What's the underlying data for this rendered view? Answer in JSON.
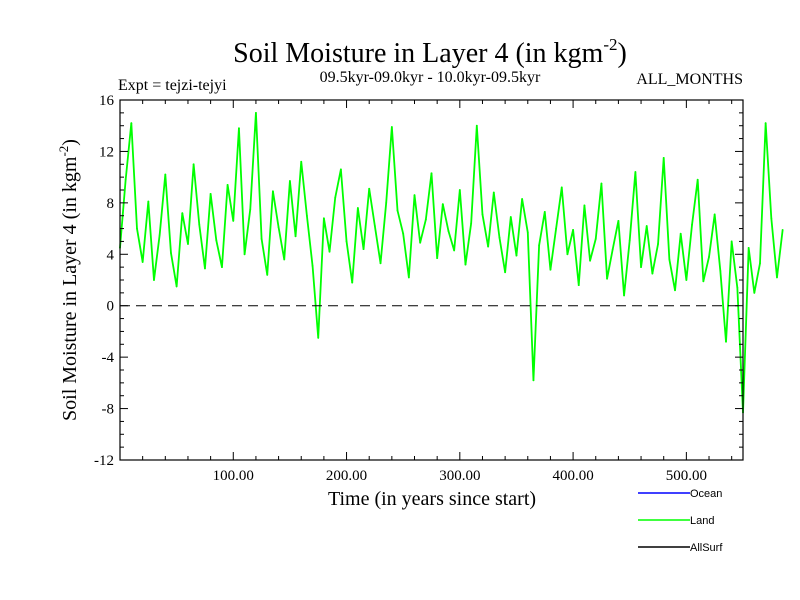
{
  "chart_data": {
    "type": "line",
    "title": "Soil Moisture in Layer 4 (in kgm",
    "title_sup": "-2",
    "title_close": ")",
    "expt": "Expt = tejzi-tejyi",
    "period": "09.5kyr-09.0kyr - 10.0kyr-09.5kyr",
    "months": "ALL_MONTHS",
    "xlabel": "Time (in years since start)",
    "ylabel": "Soil Moisture in Layer 4 (in kgm",
    "ylabel_sup": "-2",
    "ylabel_close": ")",
    "xlim": [
      0,
      550
    ],
    "ylim": [
      -12,
      16
    ],
    "x_ticks": [
      100,
      200,
      300,
      400,
      500
    ],
    "x_tick_labels": [
      "100.00",
      "200.00",
      "300.00",
      "400.00",
      "500.00"
    ],
    "y_ticks": [
      -12,
      -8,
      -4,
      0,
      4,
      8,
      12,
      16
    ],
    "y_tick_labels": [
      "-12",
      "-8",
      "-4",
      "0",
      "4",
      "8",
      "12",
      "16"
    ],
    "zero_line": 0,
    "series": [
      {
        "name": "Ocean",
        "color": "#0000ff",
        "values": []
      },
      {
        "name": "Land",
        "color": "#00ff00",
        "x_step": 5,
        "values": [
          4.5,
          9.8,
          14.2,
          6.0,
          3.4,
          8.1,
          2.0,
          5.5,
          10.2,
          4.1,
          1.5,
          7.2,
          4.8,
          11.0,
          6.3,
          2.9,
          8.7,
          5.1,
          3.0,
          9.4,
          6.6,
          13.8,
          4.0,
          7.5,
          15.0,
          5.2,
          2.4,
          8.9,
          6.1,
          3.6,
          9.7,
          5.4,
          11.2,
          7.0,
          3.1,
          -2.5,
          6.8,
          4.2,
          8.4,
          10.6,
          5.0,
          1.8,
          7.6,
          4.4,
          9.1,
          6.2,
          3.3,
          8.0,
          13.9,
          7.4,
          5.6,
          2.2,
          8.6,
          4.9,
          6.7,
          10.3,
          3.7,
          7.9,
          5.8,
          4.3,
          9.0,
          3.2,
          6.4,
          14.0,
          7.1,
          4.6,
          8.8,
          5.3,
          2.6,
          6.9,
          3.9,
          8.3,
          5.7,
          -5.8,
          4.7,
          7.3,
          2.8,
          6.0,
          9.2,
          4.0,
          5.9,
          1.6,
          7.8,
          3.5,
          5.2,
          9.5,
          2.1,
          4.4,
          6.6,
          0.8,
          5.1,
          10.4,
          3.0,
          6.2,
          2.5,
          4.8,
          11.5,
          3.6,
          1.2,
          5.6,
          2.0,
          6.3,
          9.8,
          1.9,
          3.8,
          7.1,
          2.7,
          -2.8,
          5.0,
          1.4,
          -8.3,
          4.5,
          1.0,
          3.3,
          14.2,
          6.8,
          2.2,
          5.9
        ]
      },
      {
        "name": "AllSurf",
        "color": "#000000",
        "values": []
      }
    ]
  },
  "legend": [
    {
      "label": "Ocean",
      "color": "#0000ff"
    },
    {
      "label": "Land",
      "color": "#00ff00"
    },
    {
      "label": "AllSurf",
      "color": "#000000"
    }
  ]
}
